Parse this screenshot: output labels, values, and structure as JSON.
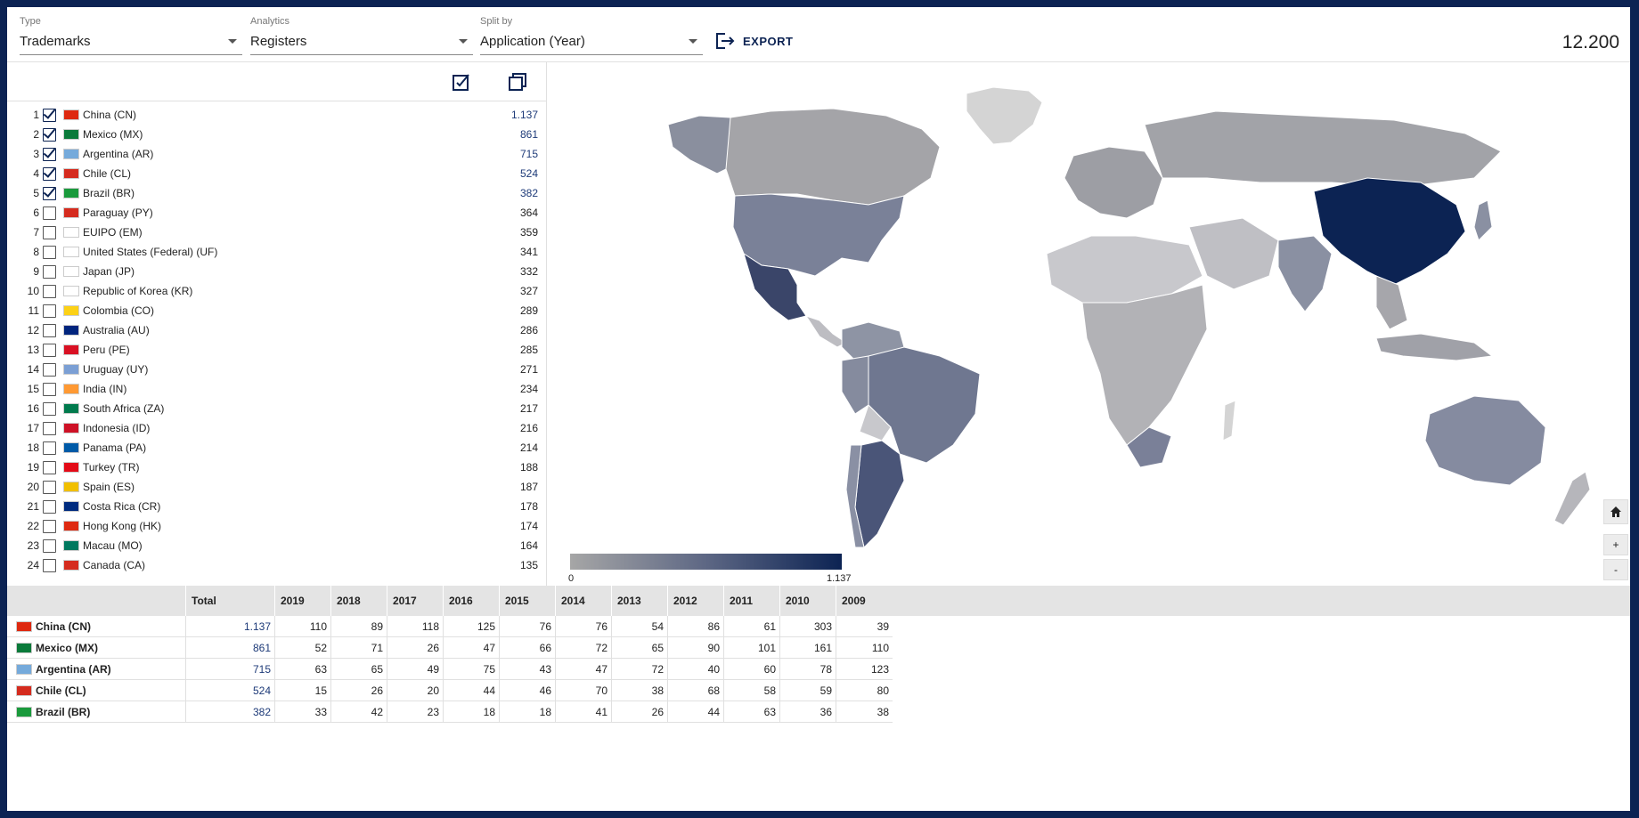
{
  "filters": {
    "type": {
      "label": "Type",
      "value": "Trademarks"
    },
    "analytics": {
      "label": "Analytics",
      "value": "Registers"
    },
    "split": {
      "label": "Split by",
      "value": "Application (Year)"
    }
  },
  "export_label": "EXPORT",
  "total_count": "12.200",
  "toolbar": {
    "select_all_icon": "checklist-icon",
    "copy_icon": "copy-icon"
  },
  "countries": [
    {
      "rank": "1",
      "name": "China (CN)",
      "value": "1.137",
      "checked": true,
      "flag": "#de2910"
    },
    {
      "rank": "2",
      "name": "Mexico (MX)",
      "value": "861",
      "checked": true,
      "flag": "#0a7a3a"
    },
    {
      "rank": "3",
      "name": "Argentina (AR)",
      "value": "715",
      "checked": true,
      "flag": "#75aadb"
    },
    {
      "rank": "4",
      "name": "Chile (CL)",
      "value": "524",
      "checked": true,
      "flag": "#d52b1e"
    },
    {
      "rank": "5",
      "name": "Brazil (BR)",
      "value": "382",
      "checked": true,
      "flag": "#1a9a3c"
    },
    {
      "rank": "6",
      "name": "Paraguay (PY)",
      "value": "364",
      "checked": false,
      "flag": "#d52b1e"
    },
    {
      "rank": "7",
      "name": "EUIPO (EM)",
      "value": "359",
      "checked": false,
      "flag": "#ffffff"
    },
    {
      "rank": "8",
      "name": "United States (Federal) (UF)",
      "value": "341",
      "checked": false,
      "flag": "#ffffff"
    },
    {
      "rank": "9",
      "name": "Japan (JP)",
      "value": "332",
      "checked": false,
      "flag": "#ffffff"
    },
    {
      "rank": "10",
      "name": "Republic of Korea (KR)",
      "value": "327",
      "checked": false,
      "flag": "#ffffff"
    },
    {
      "rank": "11",
      "name": "Colombia (CO)",
      "value": "289",
      "checked": false,
      "flag": "#fcd116"
    },
    {
      "rank": "12",
      "name": "Australia (AU)",
      "value": "286",
      "checked": false,
      "flag": "#00247d"
    },
    {
      "rank": "13",
      "name": "Peru (PE)",
      "value": "285",
      "checked": false,
      "flag": "#d91023"
    },
    {
      "rank": "14",
      "name": "Uruguay (UY)",
      "value": "271",
      "checked": false,
      "flag": "#7b9fd4"
    },
    {
      "rank": "15",
      "name": "India (IN)",
      "value": "234",
      "checked": false,
      "flag": "#ff9933"
    },
    {
      "rank": "16",
      "name": "South Africa (ZA)",
      "value": "217",
      "checked": false,
      "flag": "#007a4d"
    },
    {
      "rank": "17",
      "name": "Indonesia (ID)",
      "value": "216",
      "checked": false,
      "flag": "#ce1126"
    },
    {
      "rank": "18",
      "name": "Panama (PA)",
      "value": "214",
      "checked": false,
      "flag": "#005aa7"
    },
    {
      "rank": "19",
      "name": "Turkey (TR)",
      "value": "188",
      "checked": false,
      "flag": "#e30a17"
    },
    {
      "rank": "20",
      "name": "Spain (ES)",
      "value": "187",
      "checked": false,
      "flag": "#f1bf00"
    },
    {
      "rank": "21",
      "name": "Costa Rica (CR)",
      "value": "178",
      "checked": false,
      "flag": "#002b7f"
    },
    {
      "rank": "22",
      "name": "Hong Kong (HK)",
      "value": "174",
      "checked": false,
      "flag": "#de2910"
    },
    {
      "rank": "23",
      "name": "Macau (MO)",
      "value": "164",
      "checked": false,
      "flag": "#00785e"
    },
    {
      "rank": "24",
      "name": "Canada (CA)",
      "value": "135",
      "checked": false,
      "flag": "#d52b1e"
    }
  ],
  "legend": {
    "min": "0",
    "max": "1.137"
  },
  "map_controls": {
    "home_icon": "home-icon",
    "zoom_in": "+",
    "zoom_out": "-"
  },
  "table": {
    "headers": [
      "Total",
      "2019",
      "2018",
      "2017",
      "2016",
      "2015",
      "2014",
      "2013",
      "2012",
      "2011",
      "2010",
      "2009"
    ],
    "rows": [
      {
        "name": "China (CN)",
        "flag": "#de2910",
        "cells": [
          "1.137",
          "110",
          "89",
          "118",
          "125",
          "76",
          "76",
          "54",
          "86",
          "61",
          "303",
          "39"
        ]
      },
      {
        "name": "Mexico (MX)",
        "flag": "#0a7a3a",
        "cells": [
          "861",
          "52",
          "71",
          "26",
          "47",
          "66",
          "72",
          "65",
          "90",
          "101",
          "161",
          "110"
        ]
      },
      {
        "name": "Argentina (AR)",
        "flag": "#75aadb",
        "cells": [
          "715",
          "63",
          "65",
          "49",
          "75",
          "43",
          "47",
          "72",
          "40",
          "60",
          "78",
          "123"
        ]
      },
      {
        "name": "Chile (CL)",
        "flag": "#d52b1e",
        "cells": [
          "524",
          "15",
          "26",
          "20",
          "44",
          "46",
          "70",
          "38",
          "68",
          "58",
          "59",
          "80"
        ]
      },
      {
        "name": "Brazil (BR)",
        "flag": "#1a9a3c",
        "cells": [
          "382",
          "33",
          "42",
          "23",
          "18",
          "18",
          "41",
          "26",
          "44",
          "63",
          "36",
          "38"
        ]
      }
    ]
  }
}
